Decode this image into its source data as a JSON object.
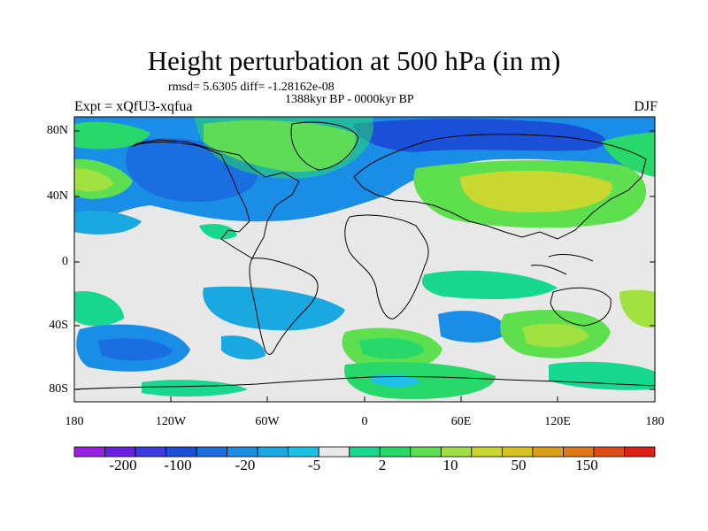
{
  "title": "Height perturbation at 500 hPa (in m)",
  "stats": "rmsd= 5.6305 diff= -1.28162e-08",
  "period": "1388kyr BP - 0000kyr BP",
  "experiment": "Expt = xQfU3-xqfua",
  "season": "DJF",
  "lat_labels": [
    "80N",
    "40N",
    "0",
    "40S",
    "80S"
  ],
  "lon_labels": [
    "180",
    "120W",
    "60W",
    "0",
    "60E",
    "120E",
    "180"
  ],
  "colorbar": {
    "colors": [
      "#9a20e0",
      "#6a20e0",
      "#3a3ae0",
      "#1a50d8",
      "#1a6ee0",
      "#1a8ee6",
      "#19a8e0",
      "#1ac2e6",
      "#e8e8e8",
      "#18d890",
      "#28d86a",
      "#5ee04e",
      "#a0e040",
      "#c8d830",
      "#d6c220",
      "#dca018",
      "#e07818",
      "#e04e18",
      "#e02018"
    ],
    "labels": [
      "-200",
      "-100",
      "-20",
      "-5",
      "2",
      "10",
      "50",
      "150"
    ]
  }
}
